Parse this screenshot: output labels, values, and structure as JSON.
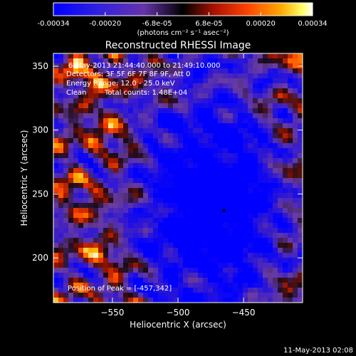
{
  "chart_data": {
    "type": "heatmap",
    "title": "Reconstructed RHESSI Image",
    "xlabel": "Heliocentric X (arcsec)",
    "ylabel": "Heliocentric Y (arcsec)",
    "xlim": [
      -595,
      -405
    ],
    "ylim": [
      165,
      360
    ],
    "x_ticks": [
      -550,
      -500,
      -450
    ],
    "y_ticks": [
      200,
      250,
      300,
      350
    ],
    "colorbar": {
      "ticks": [
        "-0.00034",
        "-0.00020",
        "-6.8e-05",
        "6.8e-05",
        "0.00020",
        "0.00034"
      ],
      "unit_label": "(photons cm⁻² s⁻¹ asec⁻²)",
      "range": [
        -0.00034,
        0.00034
      ]
    },
    "annotations": {
      "time_range": "6-May-2013 21:44:40.000 to 21:49:10.000",
      "detectors": "Detectors: 3F 5F 6F 7F 8F 9F, Att 0",
      "energy_range": "Energy Range: 12.0 - 25.0 keV",
      "clean_label": "Clean",
      "total_counts": "Total counts: 1.48E+04",
      "peak": "Position of Peak = [-457,342]"
    },
    "marker": {
      "x": -465,
      "y": 237
    },
    "colors": [
      "#0000ff",
      "#6633cc",
      "#000000",
      "#cc2200",
      "#ff6a00",
      "#ffd400",
      "#ffffff"
    ]
  },
  "footer": {
    "date": "11-May-2013 02:08"
  }
}
